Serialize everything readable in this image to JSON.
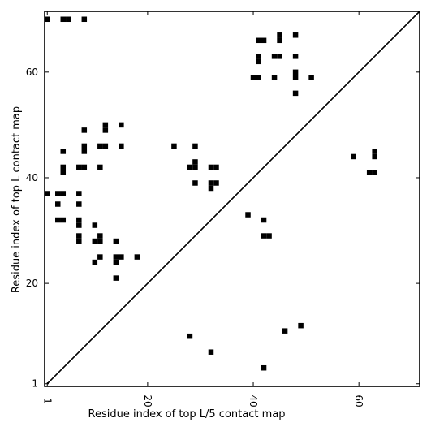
{
  "chart_data": {
    "type": "scatter",
    "xlabel": "Residue index of top L/5 contact map",
    "ylabel": "Residue index of top L contact map",
    "xlim": [
      0.5,
      71.5
    ],
    "ylim": [
      0.5,
      71.5
    ],
    "x_ticks": [
      {
        "value": 1,
        "label": "1"
      },
      {
        "value": 20,
        "label": "20"
      },
      {
        "value": 40,
        "label": "40"
      },
      {
        "value": 60,
        "label": "60"
      }
    ],
    "y_ticks": [
      {
        "value": 1,
        "label": "1"
      },
      {
        "value": 20,
        "label": "20"
      },
      {
        "value": 40,
        "label": "40"
      },
      {
        "value": 60,
        "label": "60"
      }
    ],
    "diagonal": true,
    "grid": false,
    "marker_color": "#000000",
    "upper_points": [
      [
        1,
        70
      ],
      [
        4,
        70
      ],
      [
        5,
        70
      ],
      [
        8,
        70
      ],
      [
        1,
        37
      ],
      [
        3,
        37
      ],
      [
        4,
        37
      ],
      [
        3,
        35
      ],
      [
        3,
        32
      ],
      [
        4,
        32
      ],
      [
        4,
        45
      ],
      [
        4,
        42
      ],
      [
        4,
        41
      ],
      [
        7,
        42
      ],
      [
        8,
        42
      ],
      [
        7,
        37
      ],
      [
        7,
        35
      ],
      [
        7,
        32
      ],
      [
        7,
        31
      ],
      [
        7,
        29
      ],
      [
        7,
        28
      ],
      [
        8,
        49
      ],
      [
        8,
        46
      ],
      [
        8,
        45
      ],
      [
        10,
        31
      ],
      [
        10,
        28
      ],
      [
        10,
        24
      ],
      [
        11,
        46
      ],
      [
        11,
        42
      ],
      [
        11,
        29
      ],
      [
        11,
        28
      ],
      [
        11,
        25
      ],
      [
        12,
        50
      ],
      [
        12,
        49
      ],
      [
        12,
        46
      ],
      [
        14,
        28
      ],
      [
        14,
        25
      ],
      [
        14,
        24
      ],
      [
        14,
        21
      ],
      [
        15,
        50
      ],
      [
        15,
        46
      ],
      [
        15,
        25
      ],
      [
        18,
        25
      ],
      [
        25,
        46
      ],
      [
        28,
        42
      ],
      [
        29,
        46
      ],
      [
        29,
        43
      ],
      [
        29,
        42
      ],
      [
        29,
        39
      ],
      [
        32,
        42
      ],
      [
        32,
        39
      ],
      [
        32,
        38
      ],
      [
        33,
        42
      ],
      [
        33,
        39
      ],
      [
        39,
        33
      ],
      [
        41,
        66
      ],
      [
        41,
        63
      ],
      [
        41,
        62
      ],
      [
        40,
        59
      ],
      [
        41,
        59
      ],
      [
        42,
        66
      ],
      [
        42,
        32
      ],
      [
        42,
        29
      ],
      [
        43,
        29
      ],
      [
        44,
        63
      ],
      [
        44,
        59
      ],
      [
        45,
        67
      ],
      [
        45,
        66
      ],
      [
        45,
        63
      ],
      [
        48,
        67
      ],
      [
        48,
        63
      ],
      [
        48,
        60
      ],
      [
        48,
        59
      ],
      [
        48,
        56
      ],
      [
        51,
        59
      ],
      [
        59,
        44
      ],
      [
        62,
        41
      ],
      [
        63,
        45
      ],
      [
        63,
        44
      ],
      [
        63,
        41
      ]
    ],
    "lower_points": [
      [
        28,
        10
      ],
      [
        32,
        7
      ],
      [
        42,
        4
      ],
      [
        46,
        11
      ],
      [
        49,
        12
      ]
    ]
  }
}
